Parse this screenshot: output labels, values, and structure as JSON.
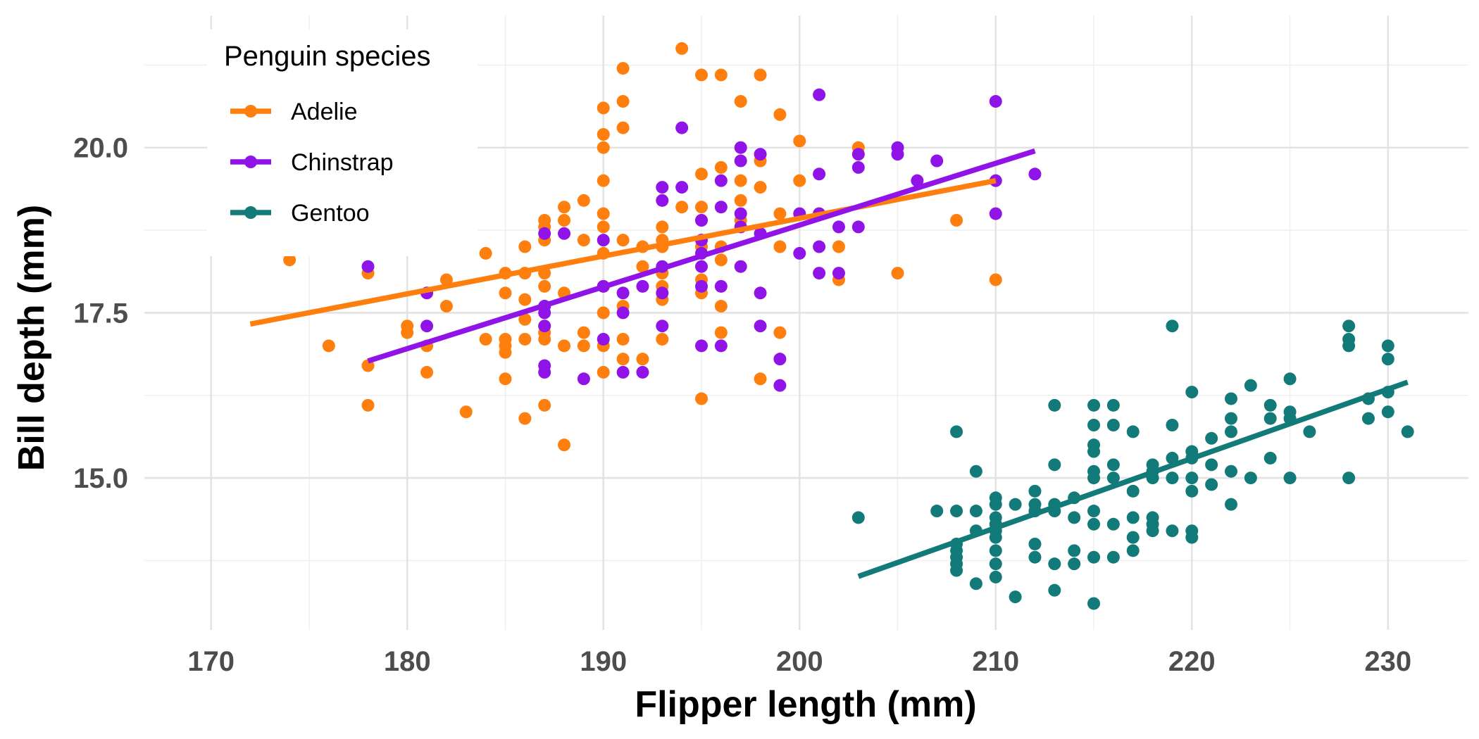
{
  "chart_data": {
    "type": "scatter",
    "xlabel": "Flipper length (mm)",
    "ylabel": "Bill depth (mm)",
    "xlim": [
      166.6,
      234.1
    ],
    "ylim": [
      12.7,
      22.0
    ],
    "x_ticks": [
      170,
      180,
      190,
      200,
      210,
      220,
      230
    ],
    "x_tick_labels": [
      "170",
      "180",
      "190",
      "200",
      "210",
      "220",
      "230"
    ],
    "y_ticks": [
      15.0,
      17.5,
      20.0
    ],
    "y_tick_labels": [
      "15.0",
      "17.5",
      "20.0"
    ],
    "grid": true,
    "legend": {
      "title": "Penguin species",
      "position": "top-left"
    },
    "series": [
      {
        "name": "Adelie",
        "color": "#ff7f0e",
        "trend": {
          "x": [
            172,
            210
          ],
          "y": [
            17.33,
            19.5
          ]
        },
        "points": [
          [
            172,
            18.6
          ],
          [
            174,
            18.3
          ],
          [
            176,
            17.0
          ],
          [
            178,
            18.1
          ],
          [
            178,
            16.7
          ],
          [
            178,
            16.1
          ],
          [
            180,
            17.3
          ],
          [
            180,
            17.2
          ],
          [
            181,
            16.6
          ],
          [
            181,
            17.0
          ],
          [
            182,
            18.0
          ],
          [
            182,
            17.6
          ],
          [
            183,
            16.0
          ],
          [
            184,
            17.1
          ],
          [
            184,
            18.4
          ],
          [
            185,
            18.1
          ],
          [
            185,
            17.8
          ],
          [
            185,
            17.1
          ],
          [
            185,
            17.0
          ],
          [
            185,
            16.9
          ],
          [
            185,
            16.5
          ],
          [
            186,
            18.5
          ],
          [
            186,
            18.1
          ],
          [
            186,
            17.7
          ],
          [
            186,
            17.4
          ],
          [
            186,
            17.1
          ],
          [
            186,
            15.9
          ],
          [
            187,
            18.9
          ],
          [
            187,
            18.8
          ],
          [
            187,
            18.6
          ],
          [
            187,
            18.1
          ],
          [
            187,
            17.9
          ],
          [
            187,
            17.6
          ],
          [
            187,
            17.3
          ],
          [
            187,
            17.2
          ],
          [
            187,
            17.1
          ],
          [
            187,
            16.1
          ],
          [
            188,
            19.1
          ],
          [
            188,
            18.9
          ],
          [
            188,
            17.8
          ],
          [
            188,
            17.0
          ],
          [
            188,
            15.5
          ],
          [
            189,
            19.2
          ],
          [
            189,
            18.6
          ],
          [
            189,
            17.2
          ],
          [
            189,
            17.0
          ],
          [
            190,
            20.6
          ],
          [
            190,
            20.2
          ],
          [
            190,
            20.0
          ],
          [
            190,
            19.5
          ],
          [
            190,
            19.0
          ],
          [
            190,
            18.8
          ],
          [
            190,
            18.4
          ],
          [
            190,
            17.9
          ],
          [
            190,
            17.5
          ],
          [
            190,
            17.0
          ],
          [
            190,
            16.6
          ],
          [
            191,
            21.2
          ],
          [
            191,
            20.7
          ],
          [
            191,
            20.3
          ],
          [
            191,
            18.6
          ],
          [
            191,
            17.6
          ],
          [
            191,
            17.1
          ],
          [
            191,
            16.8
          ],
          [
            192,
            18.5
          ],
          [
            192,
            18.2
          ],
          [
            192,
            16.8
          ],
          [
            193,
            18.8
          ],
          [
            193,
            18.6
          ],
          [
            193,
            18.5
          ],
          [
            193,
            18.1
          ],
          [
            193,
            17.9
          ],
          [
            193,
            17.7
          ],
          [
            193,
            17.1
          ],
          [
            194,
            21.5
          ],
          [
            194,
            19.1
          ],
          [
            195,
            21.1
          ],
          [
            195,
            19.6
          ],
          [
            195,
            19.1
          ],
          [
            195,
            18.9
          ],
          [
            195,
            18.5
          ],
          [
            195,
            18.0
          ],
          [
            195,
            17.8
          ],
          [
            195,
            16.2
          ],
          [
            196,
            21.1
          ],
          [
            196,
            19.7
          ],
          [
            196,
            18.5
          ],
          [
            196,
            18.3
          ],
          [
            196,
            17.6
          ],
          [
            196,
            17.2
          ],
          [
            197,
            20.7
          ],
          [
            197,
            19.5
          ],
          [
            197,
            19.2
          ],
          [
            197,
            18.9
          ],
          [
            198,
            21.1
          ],
          [
            198,
            19.8
          ],
          [
            198,
            19.4
          ],
          [
            198,
            16.5
          ],
          [
            199,
            20.5
          ],
          [
            199,
            19.0
          ],
          [
            199,
            18.5
          ],
          [
            199,
            17.2
          ],
          [
            200,
            20.1
          ],
          [
            200,
            19.5
          ],
          [
            201,
            19.0
          ],
          [
            202,
            18.5
          ],
          [
            202,
            18.0
          ],
          [
            203,
            20.0
          ],
          [
            205,
            18.1
          ],
          [
            208,
            18.9
          ],
          [
            210,
            18.0
          ]
        ]
      },
      {
        "name": "Chinstrap",
        "color": "#9013e8",
        "trend": {
          "x": [
            178,
            212
          ],
          "y": [
            16.77,
            19.95
          ]
        },
        "points": [
          [
            178,
            18.2
          ],
          [
            181,
            17.8
          ],
          [
            181,
            17.3
          ],
          [
            187,
            18.7
          ],
          [
            187,
            17.6
          ],
          [
            187,
            17.5
          ],
          [
            187,
            17.3
          ],
          [
            187,
            16.7
          ],
          [
            187,
            16.6
          ],
          [
            188,
            18.7
          ],
          [
            189,
            16.5
          ],
          [
            190,
            18.6
          ],
          [
            190,
            17.9
          ],
          [
            190,
            17.1
          ],
          [
            191,
            17.8
          ],
          [
            191,
            17.5
          ],
          [
            191,
            16.6
          ],
          [
            192,
            17.9
          ],
          [
            192,
            16.6
          ],
          [
            193,
            19.4
          ],
          [
            193,
            19.2
          ],
          [
            193,
            18.2
          ],
          [
            193,
            17.8
          ],
          [
            193,
            17.3
          ],
          [
            194,
            20.3
          ],
          [
            194,
            19.4
          ],
          [
            195,
            18.9
          ],
          [
            195,
            18.6
          ],
          [
            195,
            18.4
          ],
          [
            195,
            18.2
          ],
          [
            195,
            17.9
          ],
          [
            195,
            17.0
          ],
          [
            196,
            19.5
          ],
          [
            196,
            19.1
          ],
          [
            196,
            17.9
          ],
          [
            196,
            17.0
          ],
          [
            197,
            20.0
          ],
          [
            197,
            19.8
          ],
          [
            197,
            19.0
          ],
          [
            197,
            18.8
          ],
          [
            197,
            18.2
          ],
          [
            198,
            19.9
          ],
          [
            198,
            18.7
          ],
          [
            198,
            17.8
          ],
          [
            198,
            17.3
          ],
          [
            199,
            16.8
          ],
          [
            199,
            16.4
          ],
          [
            200,
            19.0
          ],
          [
            200,
            18.4
          ],
          [
            201,
            20.8
          ],
          [
            201,
            19.6
          ],
          [
            201,
            19.0
          ],
          [
            201,
            18.5
          ],
          [
            201,
            18.1
          ],
          [
            202,
            18.8
          ],
          [
            202,
            18.1
          ],
          [
            203,
            19.9
          ],
          [
            203,
            19.7
          ],
          [
            203,
            18.8
          ],
          [
            205,
            20.0
          ],
          [
            205,
            19.9
          ],
          [
            206,
            19.5
          ],
          [
            207,
            19.8
          ],
          [
            210,
            20.7
          ],
          [
            210,
            19.5
          ],
          [
            210,
            19.0
          ],
          [
            212,
            19.6
          ]
        ]
      },
      {
        "name": "Gentoo",
        "color": "#127a78",
        "trend": {
          "x": [
            203,
            231
          ],
          "y": [
            13.51,
            16.45
          ]
        },
        "points": [
          [
            203,
            14.4
          ],
          [
            207,
            14.5
          ],
          [
            208,
            15.7
          ],
          [
            208,
            14.5
          ],
          [
            208,
            14.0
          ],
          [
            208,
            13.9
          ],
          [
            208,
            13.8
          ],
          [
            208,
            13.7
          ],
          [
            208,
            13.6
          ],
          [
            209,
            15.1
          ],
          [
            209,
            14.5
          ],
          [
            209,
            14.2
          ],
          [
            209,
            13.4
          ],
          [
            210,
            14.7
          ],
          [
            210,
            14.6
          ],
          [
            210,
            14.4
          ],
          [
            210,
            14.3
          ],
          [
            210,
            14.2
          ],
          [
            210,
            14.1
          ],
          [
            210,
            13.9
          ],
          [
            210,
            13.7
          ],
          [
            210,
            13.5
          ],
          [
            211,
            14.6
          ],
          [
            211,
            13.2
          ],
          [
            212,
            14.8
          ],
          [
            212,
            14.6
          ],
          [
            212,
            14.5
          ],
          [
            212,
            14.0
          ],
          [
            212,
            13.8
          ],
          [
            213,
            16.1
          ],
          [
            213,
            15.2
          ],
          [
            213,
            14.6
          ],
          [
            213,
            14.5
          ],
          [
            213,
            13.7
          ],
          [
            213,
            13.3
          ],
          [
            214,
            14.7
          ],
          [
            214,
            14.4
          ],
          [
            214,
            13.9
          ],
          [
            214,
            13.7
          ],
          [
            215,
            16.1
          ],
          [
            215,
            15.8
          ],
          [
            215,
            15.5
          ],
          [
            215,
            15.4
          ],
          [
            215,
            15.1
          ],
          [
            215,
            15.0
          ],
          [
            215,
            14.5
          ],
          [
            215,
            14.3
          ],
          [
            215,
            13.8
          ],
          [
            215,
            13.1
          ],
          [
            216,
            16.1
          ],
          [
            216,
            15.8
          ],
          [
            216,
            15.2
          ],
          [
            216,
            15.0
          ],
          [
            216,
            14.3
          ],
          [
            216,
            13.8
          ],
          [
            217,
            15.7
          ],
          [
            217,
            14.8
          ],
          [
            217,
            14.4
          ],
          [
            217,
            14.1
          ],
          [
            217,
            13.9
          ],
          [
            218,
            15.2
          ],
          [
            218,
            15.1
          ],
          [
            218,
            15.0
          ],
          [
            218,
            14.4
          ],
          [
            218,
            14.3
          ],
          [
            218,
            14.2
          ],
          [
            219,
            17.3
          ],
          [
            219,
            15.8
          ],
          [
            219,
            15.3
          ],
          [
            219,
            15.0
          ],
          [
            219,
            14.2
          ],
          [
            220,
            16.3
          ],
          [
            220,
            15.4
          ],
          [
            220,
            15.3
          ],
          [
            220,
            15.0
          ],
          [
            220,
            14.8
          ],
          [
            220,
            14.2
          ],
          [
            220,
            14.1
          ],
          [
            221,
            15.6
          ],
          [
            221,
            15.2
          ],
          [
            221,
            14.9
          ],
          [
            222,
            16.2
          ],
          [
            222,
            15.9
          ],
          [
            222,
            15.7
          ],
          [
            222,
            15.1
          ],
          [
            222,
            14.6
          ],
          [
            223,
            16.4
          ],
          [
            223,
            15.0
          ],
          [
            224,
            16.1
          ],
          [
            224,
            15.9
          ],
          [
            224,
            15.3
          ],
          [
            225,
            16.5
          ],
          [
            225,
            16.0
          ],
          [
            225,
            15.9
          ],
          [
            225,
            15.0
          ],
          [
            226,
            15.7
          ],
          [
            228,
            17.3
          ],
          [
            228,
            17.1
          ],
          [
            228,
            17.0
          ],
          [
            228,
            15.0
          ],
          [
            229,
            16.2
          ],
          [
            229,
            15.9
          ],
          [
            230,
            17.0
          ],
          [
            230,
            16.8
          ],
          [
            230,
            16.3
          ],
          [
            230,
            16.0
          ],
          [
            231,
            15.7
          ]
        ]
      }
    ]
  }
}
